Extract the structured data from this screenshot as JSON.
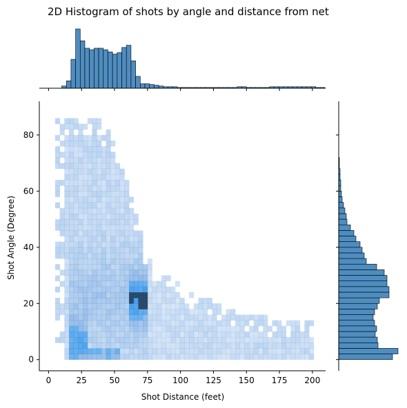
{
  "chart_data": {
    "type": "heatmap",
    "title": "2D Histogram of shots by angle and distance from net",
    "xlabel": "Shot Distance (feet)",
    "ylabel": "Shot Angle (Degree)",
    "xlim": [
      -7,
      210
    ],
    "ylim": [
      -4,
      92
    ],
    "x_ticks": [
      "0",
      "25",
      "50",
      "75",
      "100",
      "125",
      "150",
      "175",
      "200"
    ],
    "y_ticks": [
      "0",
      "20",
      "40",
      "60",
      "80"
    ],
    "bin_width_x": 3.5,
    "bin_width_y": 2,
    "colors": {
      "histogram": "#3b81b9",
      "heat": "#1f77b4",
      "edge": "#000000",
      "axis": "#000000"
    },
    "marginal_x": {
      "edges_start": 10,
      "bin_width": 3.5,
      "counts": [
        3,
        10,
        39,
        80,
        64,
        54,
        52,
        54,
        54,
        52,
        49,
        46,
        48,
        55,
        58,
        37,
        16,
        6,
        6,
        5,
        4,
        3,
        2,
        2,
        2,
        1,
        1,
        1,
        1,
        1,
        1,
        1,
        1,
        1,
        1,
        1,
        1,
        1,
        2,
        2,
        1,
        1,
        1,
        1,
        1,
        2,
        2,
        2,
        2,
        2,
        2,
        2,
        2,
        2,
        2,
        1,
        1
      ]
    },
    "marginal_y": {
      "edges_start": 0,
      "bin_width": 2,
      "counts": [
        78,
        86,
        57,
        56,
        53,
        55,
        52,
        50,
        52,
        56,
        59,
        73,
        73,
        70,
        70,
        66,
        55,
        40,
        37,
        34,
        31,
        25,
        22,
        17,
        12,
        11,
        9,
        7,
        5,
        4,
        3,
        3,
        2,
        2,
        1,
        1,
        0,
        0,
        0,
        0
      ]
    }
  }
}
